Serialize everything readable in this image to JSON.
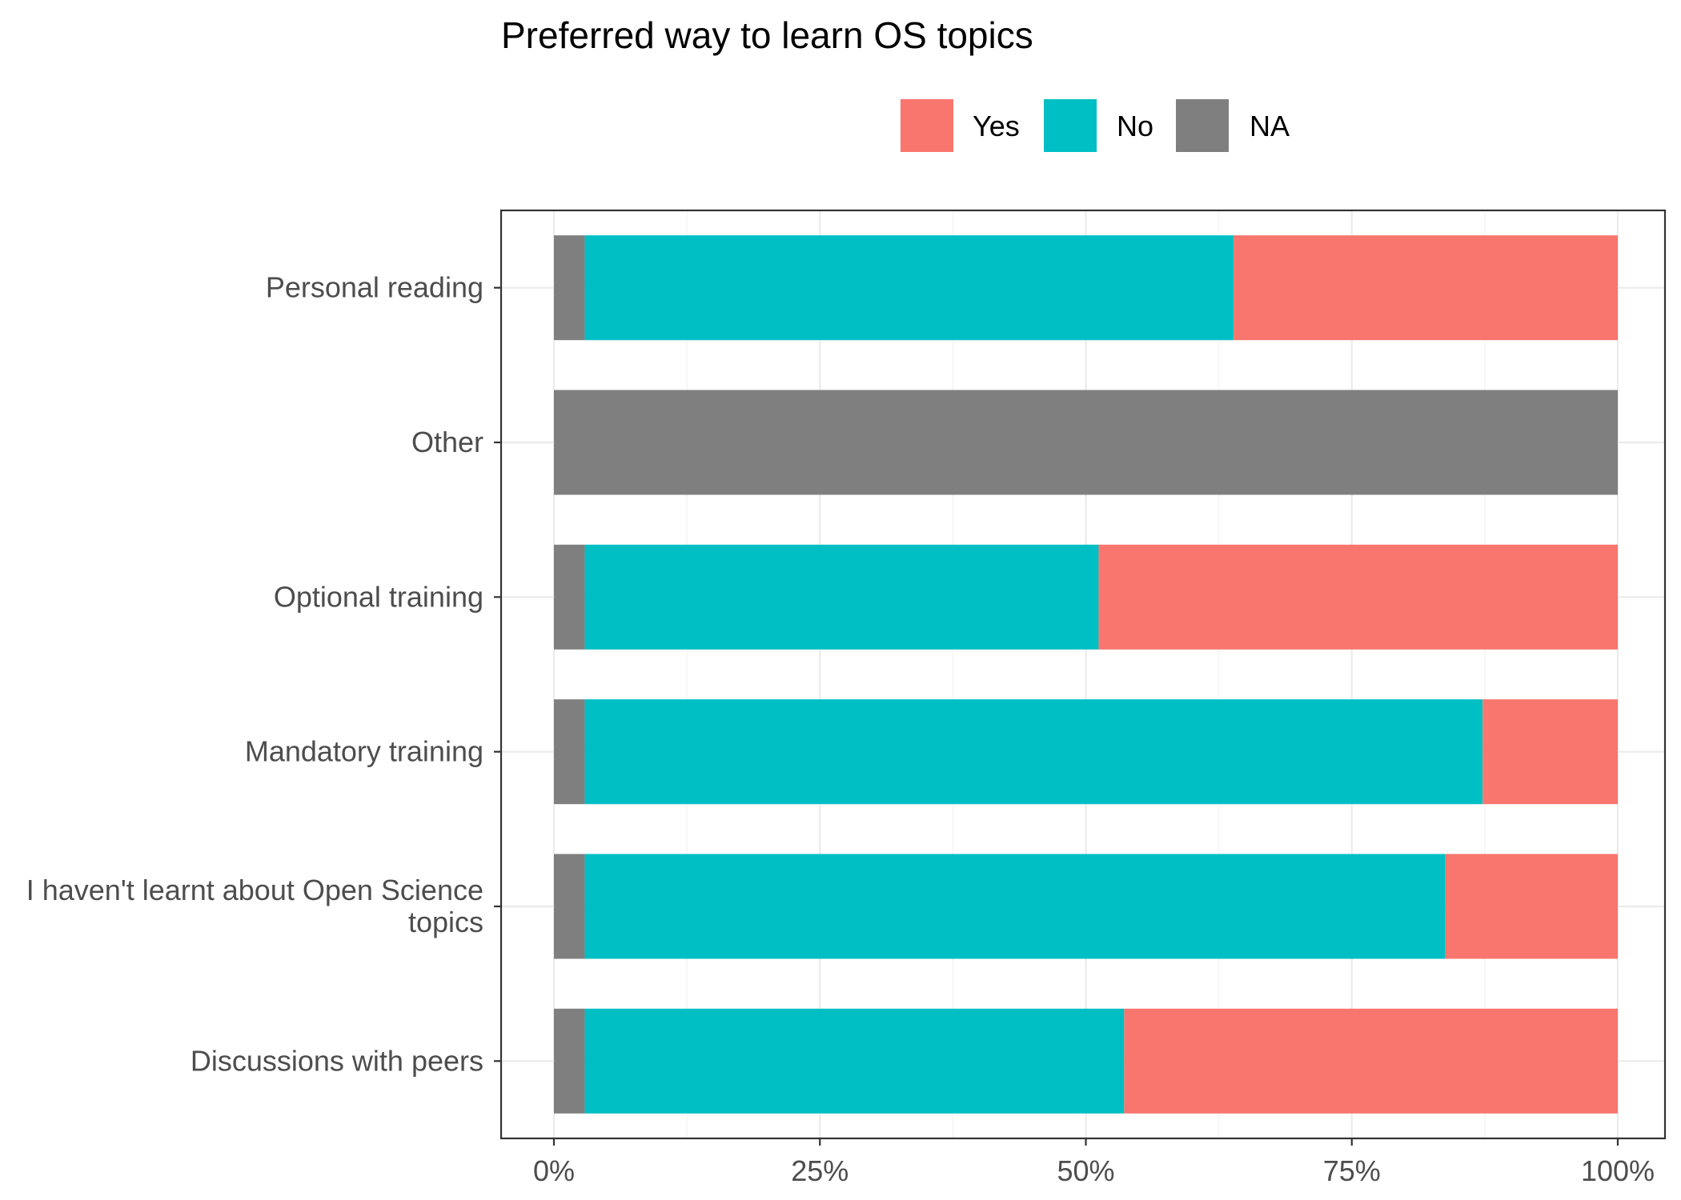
{
  "chart_data": {
    "type": "bar",
    "orientation": "horizontal",
    "stacked": "percent",
    "title": "Preferred way to learn OS topics",
    "legend_position": "top",
    "grid": true,
    "xlim": [
      0,
      1
    ],
    "x_ticks": [
      {
        "value": 0,
        "label": "0%"
      },
      {
        "value": 0.25,
        "label": "25%"
      },
      {
        "value": 0.5,
        "label": "50%"
      },
      {
        "value": 0.75,
        "label": "75%"
      },
      {
        "value": 1,
        "label": "100%"
      }
    ],
    "categories": [
      [
        "Personal reading"
      ],
      [
        "Other"
      ],
      [
        "Optional training"
      ],
      [
        "Mandatory training"
      ],
      [
        "I haven't learnt about Open Science",
        "topics"
      ],
      [
        "Discussions with peers"
      ]
    ],
    "series": [
      {
        "name": "NA",
        "color": "#7f7f7f",
        "values": [
          0.029,
          1.0,
          0.029,
          0.029,
          0.029,
          0.029
        ]
      },
      {
        "name": "No",
        "color": "#00bfc4",
        "values": [
          0.61,
          0.0,
          0.483,
          0.844,
          0.809,
          0.507
        ]
      },
      {
        "name": "Yes",
        "color": "#f8766d",
        "values": [
          0.361,
          0.0,
          0.488,
          0.127,
          0.162,
          0.464
        ]
      }
    ],
    "legend": [
      {
        "name": "Yes",
        "color": "#f8766d"
      },
      {
        "name": "No",
        "color": "#00bfc4"
      },
      {
        "name": "NA",
        "color": "#7f7f7f"
      }
    ]
  }
}
